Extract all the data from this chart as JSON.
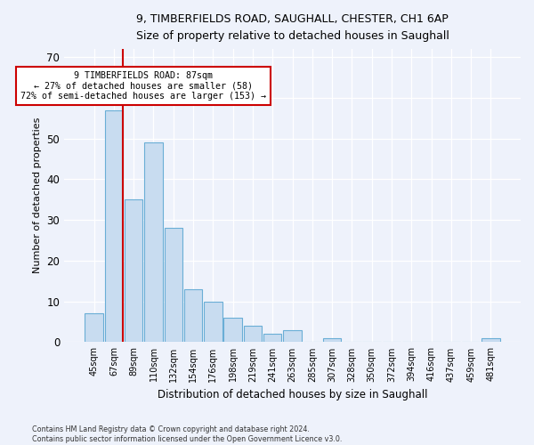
{
  "title_line1": "9, TIMBERFIELDS ROAD, SAUGHALL, CHESTER, CH1 6AP",
  "title_line2": "Size of property relative to detached houses in Saughall",
  "xlabel": "Distribution of detached houses by size in Saughall",
  "ylabel": "Number of detached properties",
  "bar_color": "#c8dcf0",
  "bar_edge_color": "#6aaed6",
  "annotation_line_color": "#cc0000",
  "annotation_box_color": "#cc0000",
  "annotation_text_line1": "9 TIMBERFIELDS ROAD: 87sqm",
  "annotation_text_line2": "← 27% of detached houses are smaller (58)",
  "annotation_text_line3": "72% of semi-detached houses are larger (153) →",
  "categories": [
    "45sqm",
    "67sqm",
    "89sqm",
    "110sqm",
    "132sqm",
    "154sqm",
    "176sqm",
    "198sqm",
    "219sqm",
    "241sqm",
    "263sqm",
    "285sqm",
    "307sqm",
    "328sqm",
    "350sqm",
    "372sqm",
    "394sqm",
    "416sqm",
    "437sqm",
    "459sqm",
    "481sqm"
  ],
  "values": [
    7,
    57,
    35,
    49,
    28,
    13,
    10,
    6,
    4,
    2,
    3,
    0,
    1,
    0,
    0,
    0,
    0,
    0,
    0,
    0,
    1
  ],
  "ylim": [
    0,
    72
  ],
  "yticks": [
    0,
    10,
    20,
    30,
    40,
    50,
    60,
    70
  ],
  "property_bin_index": 1,
  "footer_line1": "Contains HM Land Registry data © Crown copyright and database right 2024.",
  "footer_line2": "Contains public sector information licensed under the Open Government Licence v3.0.",
  "background_color": "#eef2fb"
}
